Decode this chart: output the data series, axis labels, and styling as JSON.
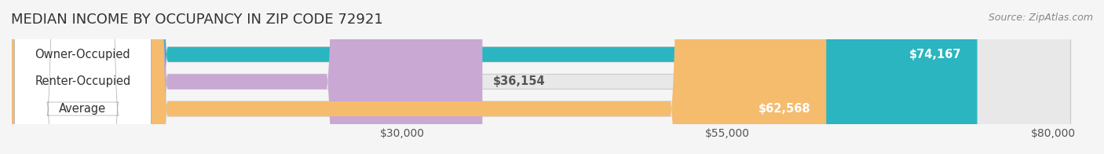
{
  "title": "MEDIAN INCOME BY OCCUPANCY IN ZIP CODE 72921",
  "source": "Source: ZipAtlas.com",
  "categories": [
    "Owner-Occupied",
    "Renter-Occupied",
    "Average"
  ],
  "values": [
    74167,
    36154,
    62568
  ],
  "bar_colors": [
    "#2ab5c0",
    "#c9a8d4",
    "#f5bc6e"
  ],
  "bar_edge_colors": [
    "#2ab5c0",
    "#c9a8d4",
    "#f5bc6e"
  ],
  "value_labels": [
    "$74,167",
    "$36,154",
    "$62,568"
  ],
  "x_ticks": [
    30000,
    55000,
    80000
  ],
  "x_tick_labels": [
    "$30,000",
    "$55,000",
    "$80,000"
  ],
  "xlim": [
    0,
    83000
  ],
  "background_color": "#f5f5f5",
  "bar_bg_color": "#e8e8e8",
  "title_fontsize": 13,
  "bar_height": 0.55,
  "label_fontsize": 10.5,
  "tick_fontsize": 10
}
